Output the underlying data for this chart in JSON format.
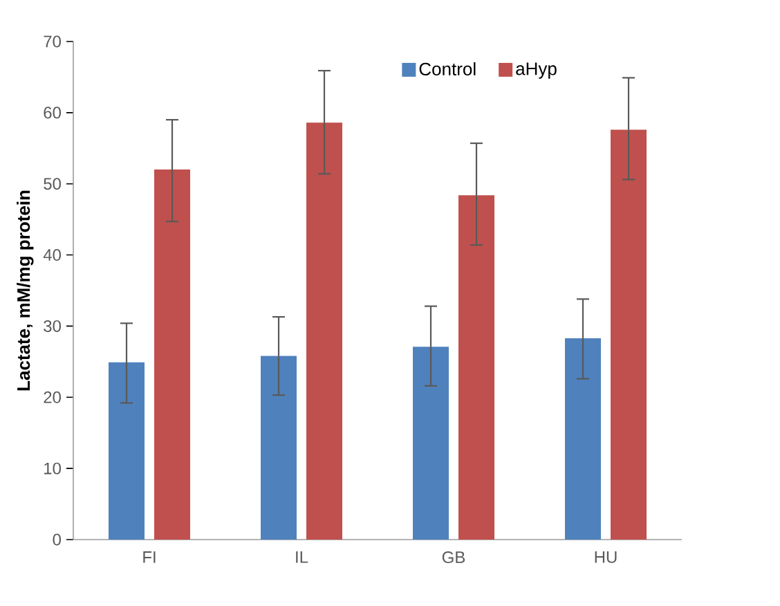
{
  "chart_data": {
    "type": "bar",
    "ylabel": "Lactate, mM/mg protein",
    "categories": [
      "FI",
      "IL",
      "GB",
      "HU"
    ],
    "series": [
      {
        "name": "Control",
        "color": "#4f81bd",
        "values": [
          24.9,
          25.8,
          27.1,
          28.3
        ],
        "errors": [
          [
            19.2,
            30.4
          ],
          [
            20.3,
            31.3
          ],
          [
            21.6,
            32.8
          ],
          [
            22.6,
            33.8
          ]
        ]
      },
      {
        "name": "aHyp",
        "color": "#c0504d",
        "values": [
          52.0,
          58.6,
          48.4,
          57.6
        ],
        "errors": [
          [
            44.7,
            59.0
          ],
          [
            51.4,
            65.9
          ],
          [
            41.4,
            55.7
          ],
          [
            50.6,
            64.9
          ]
        ]
      }
    ],
    "ylim": [
      0,
      70
    ],
    "yticks": [
      0,
      10,
      20,
      30,
      40,
      50,
      60,
      70
    ],
    "grid": false,
    "legend": "top"
  }
}
